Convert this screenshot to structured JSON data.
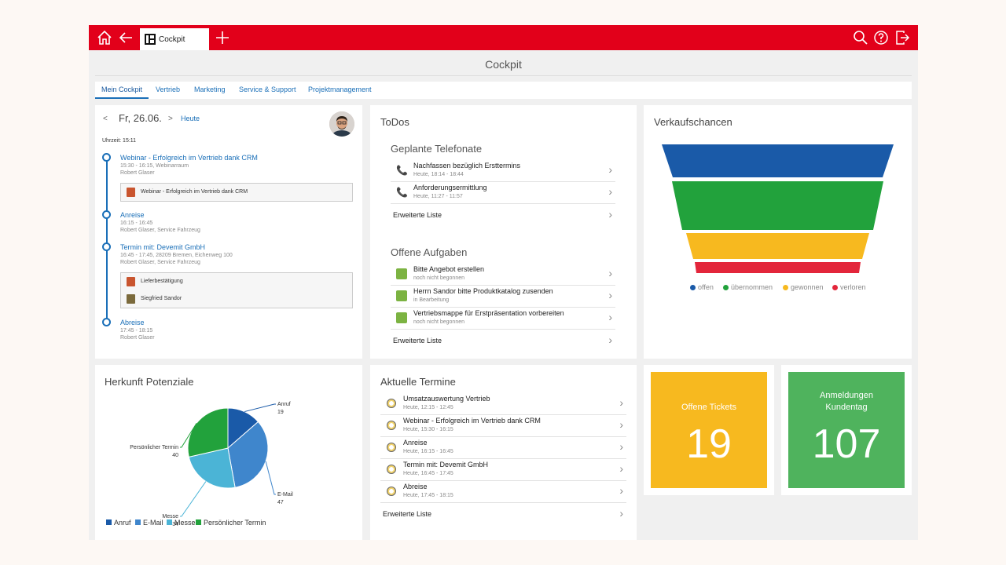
{
  "header": {
    "tab_label": "Cockpit",
    "page_title": "Cockpit",
    "colors": {
      "brand": "#e2001a"
    }
  },
  "nav_tabs": [
    "Mein Cockpit",
    "Vertrieb",
    "Marketing",
    "Service & Support",
    "Projektmanagement"
  ],
  "calendar": {
    "prev": "<",
    "date": "Fr, 26.06.",
    "next": ">",
    "today": "Heute",
    "time_label": "Uhrzeit: 15:11",
    "events": [
      {
        "title": "Webinar - Erfolgreich im Vertrieb dank CRM",
        "details": [
          "15:30 - 16:15, Webinarraum",
          "Robert Glaser"
        ],
        "attachments": [
          "Webinar - Erfolgreich im Vertrieb dank CRM"
        ]
      },
      {
        "title": "Anreise",
        "details": [
          "16:15 - 16:45",
          "Robert Glaser, Service Fahrzeug"
        ],
        "attachments": []
      },
      {
        "title": "Termin mit: Devemit GmbH",
        "details": [
          "16:45 - 17:45, 28209 Bremen, Eichenweg 100",
          "Robert Glaser, Service Fahrzeug"
        ],
        "attachments": [
          "Lieferbestätigung",
          "Siegfried Sandor"
        ]
      },
      {
        "title": "Abreise",
        "details": [
          "17:45 - 18:15",
          "Robert Glaser"
        ],
        "attachments": []
      }
    ]
  },
  "todos": {
    "title": "ToDos",
    "calls_title": "Geplante Telefonate",
    "calls": [
      {
        "title": "Nachfassen bezüglich Ersttermins",
        "sub": "Heute, 18:14 - 18:44"
      },
      {
        "title": "Anforderungsermittlung",
        "sub": "Heute, 11:27 - 11:57"
      }
    ],
    "calls_more": "Erweiterte Liste",
    "tasks_title": "Offene Aufgaben",
    "tasks": [
      {
        "title": "Bitte Angebot erstellen",
        "sub": "noch nicht begonnen"
      },
      {
        "title": "Herrn Sandor bitte Produktkatalog zusenden",
        "sub": "in Bearbeitung"
      },
      {
        "title": "Vertriebsmappe für Erstpräsentation vorbereiten",
        "sub": "noch nicht begonnen"
      }
    ],
    "tasks_more": "Erweiterte Liste"
  },
  "funnel": {
    "title": "Verkaufschancen",
    "stages": [
      {
        "name": "offen",
        "color": "#1a5aa8"
      },
      {
        "name": "übernommen",
        "color": "#22a23c"
      },
      {
        "name": "gewonnen",
        "color": "#f7b91f"
      },
      {
        "name": "verloren",
        "color": "#e3263b"
      }
    ]
  },
  "pie_card": {
    "title": "Herkunft Potenziale",
    "legend": [
      "Anruf",
      "E-Mail",
      "Messe",
      "Persönlicher Termin"
    ]
  },
  "chart_data": {
    "type": "pie",
    "title": "Herkunft Potenziale",
    "categories": [
      "Anruf",
      "E-Mail",
      "Messe",
      "Persönlicher Termin"
    ],
    "values": [
      19,
      47,
      34,
      40
    ],
    "colors": [
      "#1a5aa8",
      "#3f86cc",
      "#4bb4d6",
      "#22a23c"
    ],
    "legend_position": "bottom-left"
  },
  "appointments": {
    "title": "Aktuelle Termine",
    "items": [
      {
        "title": "Umsatzauswertung Vertrieb",
        "sub": "Heute, 12:15 - 12:45"
      },
      {
        "title": "Webinar - Erfolgreich im Vertrieb dank CRM",
        "sub": "Heute, 15:30 - 16:15"
      },
      {
        "title": "Anreise",
        "sub": "Heute, 16:15 - 16:45"
      },
      {
        "title": "Termin mit: Devemit GmbH",
        "sub": "Heute, 16:45 - 17:45"
      },
      {
        "title": "Abreise",
        "sub": "Heute, 17:45 - 18:15"
      }
    ],
    "more": "Erweiterte Liste"
  },
  "kpis": {
    "tickets": {
      "label": "Offene Tickets",
      "value": "19",
      "color": "#f7b91f"
    },
    "registrations": {
      "label_1": "Anmeldungen",
      "label_2": "Kundentag",
      "value": "107",
      "color": "#4fb35d"
    }
  }
}
